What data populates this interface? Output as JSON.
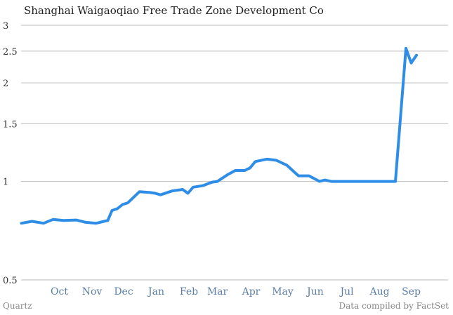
{
  "chart_data": {
    "type": "line",
    "title": "Shanghai Waigaoqiao Free Trade Zone Development Co",
    "xlabel": "",
    "ylabel": "",
    "y_scale": "log",
    "ylim": [
      0.5,
      3
    ],
    "yticks": [
      0.5,
      1,
      1.5,
      2,
      2.5,
      3
    ],
    "ytick_labels": [
      "0.5",
      "1",
      "1.5",
      "2",
      "2.5",
      "3"
    ],
    "x_tick_labels": [
      "Oct",
      "Nov",
      "Dec",
      "Jan",
      "Feb",
      "Mar",
      "Apr",
      "May",
      "Jun",
      "Jul",
      "Aug",
      "Sep"
    ],
    "grid": true,
    "line_color": "#2e8de6",
    "series": [
      {
        "x": [
          "Sep 10",
          "Sep 20",
          "Oct 1",
          "Oct 10",
          "Oct 20",
          "Nov 1",
          "Nov 10",
          "Nov 20",
          "Dec 1",
          "Dec 5",
          "Dec 10",
          "Dec 15",
          "Dec 20",
          "Dec 31",
          "Jan 10",
          "Jan 15",
          "Jan 20",
          "Jan 31",
          "Feb 10",
          "Feb 15",
          "Feb 20",
          "Mar 1",
          "Mar 10",
          "Mar 15",
          "Mar 25",
          "Apr 1",
          "Apr 10",
          "Apr 15",
          "Apr 20",
          "May 1",
          "May 10",
          "May 20",
          "May 31",
          "Jun 10",
          "Jun 20",
          "Jun 25",
          "Jul 1",
          "Jul 10",
          "Jul 20",
          "Aug 1",
          "Aug 10",
          "Aug 20",
          "Aug 31",
          "Sep 10",
          "Sep 15",
          "Sep 20"
        ],
        "y": [
          0.745,
          0.755,
          0.745,
          0.765,
          0.76,
          0.762,
          0.75,
          0.745,
          0.76,
          0.815,
          0.825,
          0.85,
          0.86,
          0.93,
          0.925,
          0.92,
          0.91,
          0.935,
          0.945,
          0.92,
          0.96,
          0.97,
          0.995,
          1.0,
          1.05,
          1.08,
          1.08,
          1.1,
          1.15,
          1.17,
          1.16,
          1.12,
          1.04,
          1.04,
          1.0,
          1.01,
          1.0,
          1.0,
          1.0,
          1.0,
          1.0,
          1.0,
          1.0,
          2.55,
          2.3,
          2.43
        ]
      }
    ]
  },
  "footer": {
    "source_left": "Quartz",
    "source_right": "Data compiled by FactSet"
  }
}
